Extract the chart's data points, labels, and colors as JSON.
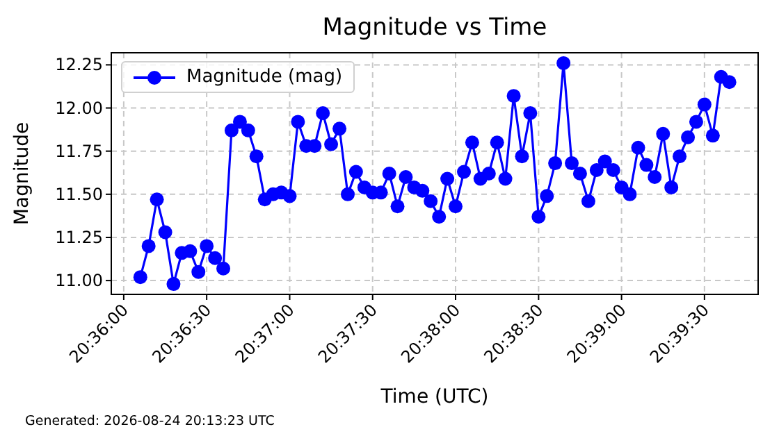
{
  "chart_data": {
    "type": "line",
    "title": "Magnitude vs Time",
    "xlabel": "Time (UTC)",
    "ylabel": "Magnitude",
    "annotations": [
      "Generated: 2026-08-24 20:13:23 UTC"
    ],
    "x": [
      20.60167,
      20.6025,
      20.60333,
      20.60417,
      20.605,
      20.60583,
      20.60667,
      20.6075,
      20.60833,
      20.60917,
      20.61,
      20.61083,
      20.61167,
      20.6125,
      20.61333,
      20.61417,
      20.615,
      20.61583,
      20.61667,
      20.6175,
      20.61833,
      20.61917,
      20.62,
      20.62083,
      20.62167,
      20.6225,
      20.62333,
      20.62417,
      20.625,
      20.62583,
      20.62667,
      20.6275,
      20.62833,
      20.62917,
      20.63,
      20.63083,
      20.63167,
      20.6325,
      20.63333,
      20.63417,
      20.635,
      20.63583,
      20.63667,
      20.6375,
      20.63833,
      20.63917,
      20.64,
      20.64083,
      20.64167,
      20.6425,
      20.64333,
      20.64417,
      20.645,
      20.64583,
      20.64667,
      20.6475,
      20.64833,
      20.64917,
      20.65,
      20.65083,
      20.65167,
      20.6525,
      20.65333,
      20.65417,
      20.655,
      20.65583,
      20.65667,
      20.6575,
      20.65833,
      20.65917,
      20.66,
      20.66083
    ],
    "series": [
      {
        "name": "Magnitude (mag)",
        "color": "#0000ff",
        "values": [
          11.02,
          11.2,
          11.47,
          11.28,
          10.98,
          11.16,
          11.17,
          11.05,
          11.2,
          11.13,
          11.07,
          11.87,
          11.92,
          11.87,
          11.72,
          11.47,
          11.5,
          11.51,
          11.49,
          11.92,
          11.78,
          11.78,
          11.97,
          11.79,
          11.88,
          11.5,
          11.63,
          11.54,
          11.51,
          11.51,
          11.62,
          11.43,
          11.6,
          11.54,
          11.52,
          11.46,
          11.37,
          11.59,
          11.43,
          11.63,
          11.8,
          11.59,
          11.62,
          11.8,
          11.59,
          12.07,
          11.72,
          11.97,
          11.37,
          11.49,
          11.68,
          12.26,
          11.68,
          11.62,
          11.46,
          11.64,
          11.69,
          11.64,
          11.54,
          11.5,
          11.77,
          11.67,
          11.6,
          11.85,
          11.54,
          11.72,
          11.83,
          11.92,
          12.02,
          11.84,
          12.18,
          12.15
        ]
      }
    ],
    "xlim": [
      20.59875,
      20.66372
    ],
    "xticks": [
      {
        "value": 20.6,
        "label": "20:36:00"
      },
      {
        "value": 20.60833,
        "label": "20:36:30"
      },
      {
        "value": 20.61667,
        "label": "20:37:00"
      },
      {
        "value": 20.625,
        "label": "20:37:30"
      },
      {
        "value": 20.63333,
        "label": "20:38:00"
      },
      {
        "value": 20.64167,
        "label": "20:38:30"
      },
      {
        "value": 20.65,
        "label": "20:39:00"
      },
      {
        "value": 20.65833,
        "label": "20:39:30"
      }
    ],
    "ylim": [
      10.92,
      12.32
    ],
    "yticks": [
      {
        "value": 11,
        "label": "11.00"
      },
      {
        "value": 11.25,
        "label": "11.25"
      },
      {
        "value": 11.5,
        "label": "11.50"
      },
      {
        "value": 11.75,
        "label": "11.75"
      },
      {
        "value": 12,
        "label": "12.00"
      },
      {
        "value": 12.25,
        "label": "12.25"
      }
    ],
    "grid": true,
    "legend": "top left",
    "marker": "circle",
    "line_style": "solid"
  }
}
